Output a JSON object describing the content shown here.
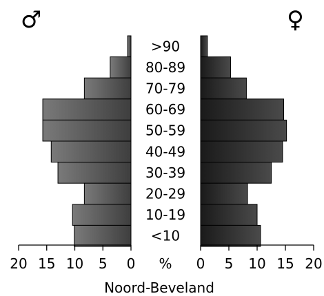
{
  "chart_data": {
    "type": "bar",
    "caption": "Noord-Beveland",
    "unit": "%",
    "male_symbol": "♂",
    "female_symbol": "♀",
    "categories": [
      ">90",
      "80-89",
      "70-79",
      "60-69",
      "50-59",
      "40-49",
      "30-39",
      "20-29",
      "10-19",
      "<10"
    ],
    "series": [
      {
        "side": "male",
        "values": [
          0.6,
          3.7,
          8.3,
          15.7,
          15.7,
          14.2,
          13.0,
          8.3,
          10.4,
          10.1
        ],
        "color": "#5a5a5a"
      },
      {
        "side": "female",
        "values": [
          1.2,
          5.3,
          8.1,
          14.7,
          15.2,
          14.5,
          12.5,
          8.3,
          10.0,
          10.6
        ],
        "color": "#333333"
      }
    ],
    "x_ticks": [
      20,
      15,
      10,
      5,
      0
    ],
    "xlim": [
      0,
      20
    ],
    "grid": false
  }
}
